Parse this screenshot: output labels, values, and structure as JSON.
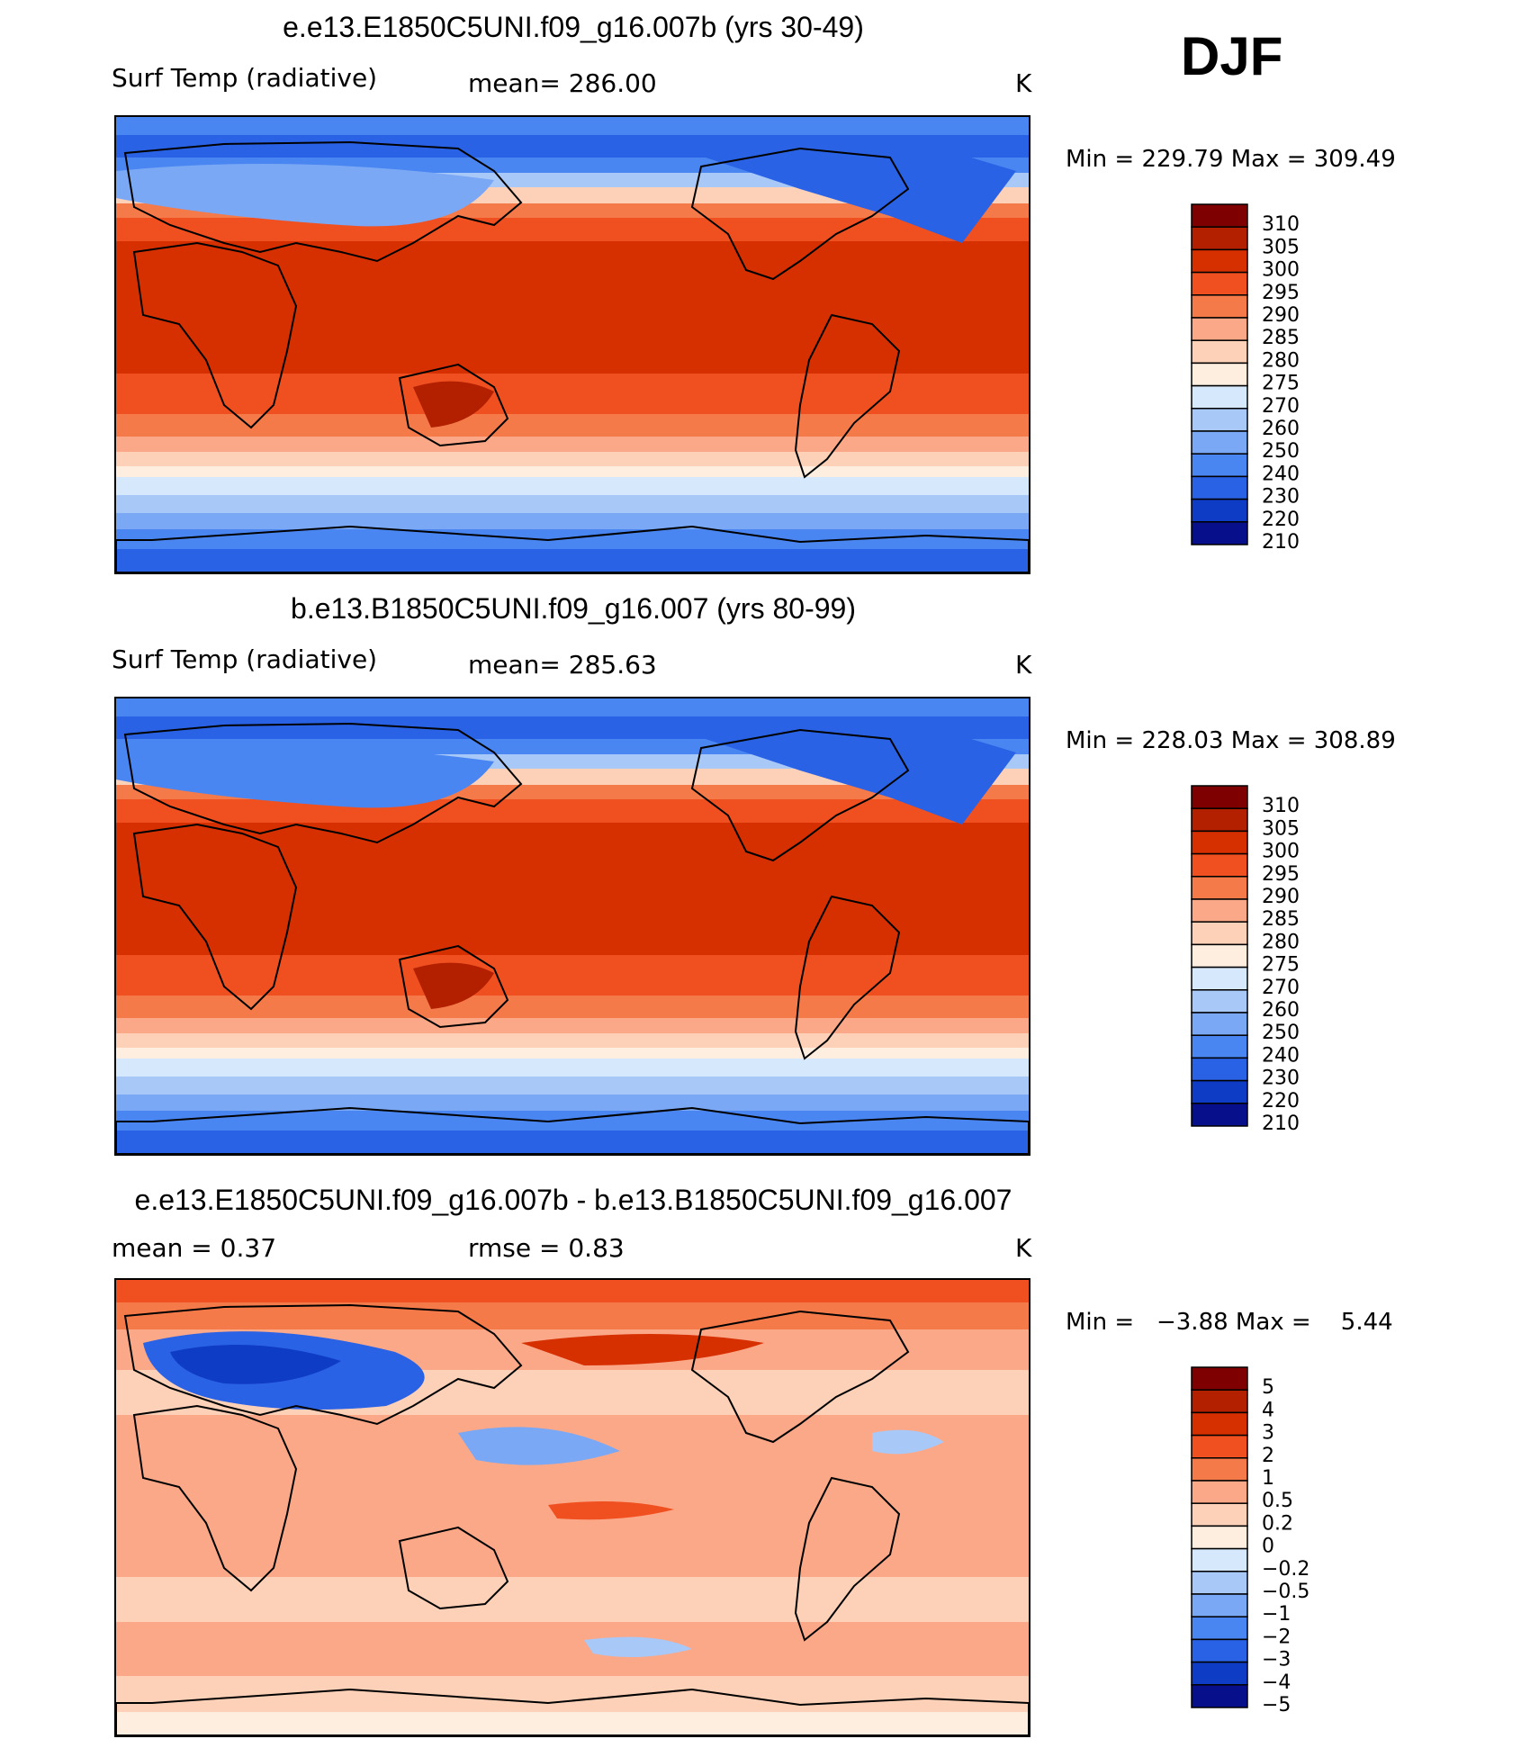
{
  "season": "DJF",
  "panels": [
    {
      "title": "e.e13.E1850C5UNI.f09_g16.007b (yrs 30-49)",
      "left_label": "Surf Temp (radiative)",
      "center_label": "mean= 286.00",
      "units": "K",
      "minmax": "Min = 229.79 Max = 309.49"
    },
    {
      "title": "b.e13.B1850C5UNI.f09_g16.007 (yrs 80-99)",
      "left_label": "Surf Temp (radiative)",
      "center_label": "mean= 285.63",
      "units": "K",
      "minmax": "Min = 228.03 Max = 308.89"
    },
    {
      "title": "e.e13.E1850C5UNI.f09_g16.007b - b.e13.B1850C5UNI.f09_g16.007",
      "left_label": "mean =    0.37",
      "center_label": "rmse =    0.83",
      "units": "K",
      "minmax": "Min =   −3.88 Max =    5.44"
    }
  ],
  "chart_data": [
    {
      "type": "heatmap",
      "title": "e.e13.E1850C5UNI.f09_g16.007b (yrs 30-49)",
      "variable": "Surf Temp (radiative)",
      "mean": 286.0,
      "min": 229.79,
      "max": 309.49,
      "units": "K",
      "levels": [
        "310",
        "305",
        "300",
        "295",
        "290",
        "285",
        "280",
        "275",
        "270",
        "260",
        "250",
        "240",
        "230",
        "220",
        "210"
      ],
      "colors": [
        "#7f0000",
        "#b22000",
        "#d73000",
        "#f05020",
        "#f57a4a",
        "#fba888",
        "#fdd0b8",
        "#fdeee0",
        "#d6e8fb",
        "#a8c8f8",
        "#7aa8f5",
        "#4a86f2",
        "#2a62e6",
        "#0e3cc4",
        "#07108a"
      ]
    },
    {
      "type": "heatmap",
      "title": "b.e13.B1850C5UNI.f09_g16.007 (yrs 80-99)",
      "variable": "Surf Temp (radiative)",
      "mean": 285.63,
      "min": 228.03,
      "max": 308.89,
      "units": "K",
      "levels": [
        "310",
        "305",
        "300",
        "295",
        "290",
        "285",
        "280",
        "275",
        "270",
        "260",
        "250",
        "240",
        "230",
        "220",
        "210"
      ],
      "colors": [
        "#7f0000",
        "#b22000",
        "#d73000",
        "#f05020",
        "#f57a4a",
        "#fba888",
        "#fdd0b8",
        "#fdeee0",
        "#d6e8fb",
        "#a8c8f8",
        "#7aa8f5",
        "#4a86f2",
        "#2a62e6",
        "#0e3cc4",
        "#07108a"
      ]
    },
    {
      "type": "heatmap",
      "title": "e.e13.E1850C5UNI.f09_g16.007b - b.e13.B1850C5UNI.f09_g16.007",
      "variable": "difference",
      "mean": 0.37,
      "rmse": 0.83,
      "min": -3.88,
      "max": 5.44,
      "units": "K",
      "levels": [
        "5",
        "4",
        "3",
        "2",
        "1",
        "0.5",
        "0.2",
        "0",
        "−0.2",
        "−0.5",
        "−1",
        "−2",
        "−3",
        "−4",
        "−5"
      ],
      "colors": [
        "#7f0000",
        "#b22000",
        "#d73000",
        "#f05020",
        "#f57a4a",
        "#fba888",
        "#fdd0b8",
        "#fdeee0",
        "#d6e8fb",
        "#a8c8f8",
        "#7aa8f5",
        "#4a86f2",
        "#2a62e6",
        "#0e3cc4",
        "#07108a"
      ]
    }
  ]
}
